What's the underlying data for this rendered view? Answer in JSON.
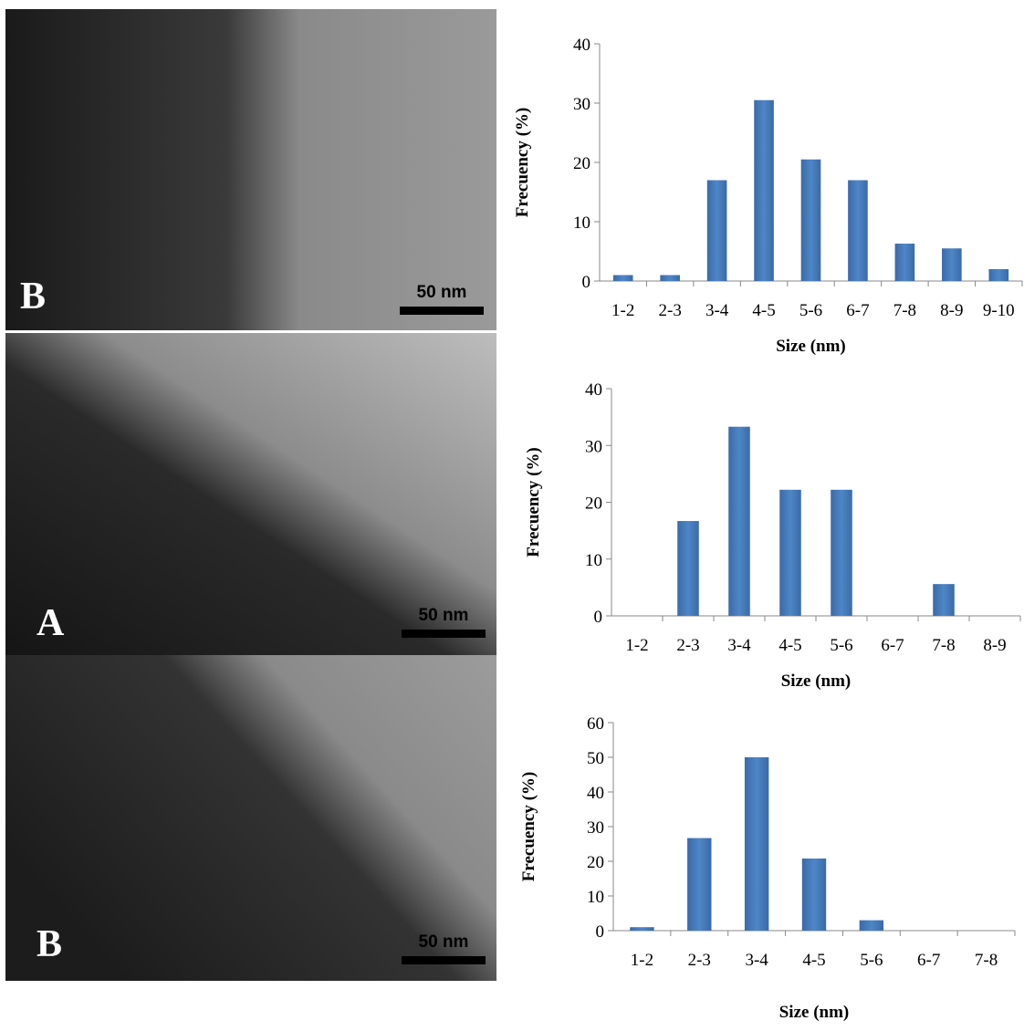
{
  "images": [
    {
      "scale_bar": "50 nm",
      "label": "B"
    },
    {
      "scale_bar": "50 nm",
      "label": "A"
    },
    {
      "scale_bar": "50 nm",
      "label": "B"
    }
  ],
  "chart_data": [
    {
      "type": "bar",
      "xlabel": "Size (nm)",
      "ylabel": "Frecuency (%)",
      "color": "#4a7ebb",
      "categories": [
        "1-2",
        "2-3",
        "3-4",
        "4-5",
        "5-6",
        "6-7",
        "7-8",
        "8-9",
        "9-10"
      ],
      "values": [
        1,
        1,
        17,
        30.5,
        20.5,
        17,
        6.3,
        5.5,
        2
      ],
      "ylim": [
        0,
        40
      ],
      "yticks": [
        0,
        10,
        20,
        30,
        40
      ]
    },
    {
      "type": "bar",
      "xlabel": "Size (nm)",
      "ylabel": "Frecuency (%)",
      "color": "#4a7ebb",
      "categories": [
        "1-2",
        "2-3",
        "3-4",
        "4-5",
        "5-6",
        "6-7",
        "7-8",
        "8-9"
      ],
      "values": [
        0,
        16.7,
        33.3,
        22.2,
        22.2,
        0,
        5.6,
        0
      ],
      "ylim": [
        0,
        40
      ],
      "yticks": [
        0,
        10,
        20,
        30,
        40
      ]
    },
    {
      "type": "bar",
      "xlabel": "Size (nm)",
      "ylabel": "Frecuency (%)",
      "color": "#4a7ebb",
      "categories": [
        "1-2",
        "2-3",
        "3-4",
        "4-5",
        "5-6",
        "6-7",
        "7-8"
      ],
      "values": [
        1,
        26.7,
        50,
        20.8,
        3,
        0,
        0
      ],
      "ylim": [
        0,
        60
      ],
      "yticks": [
        0,
        10,
        20,
        30,
        40,
        50,
        60
      ]
    }
  ]
}
